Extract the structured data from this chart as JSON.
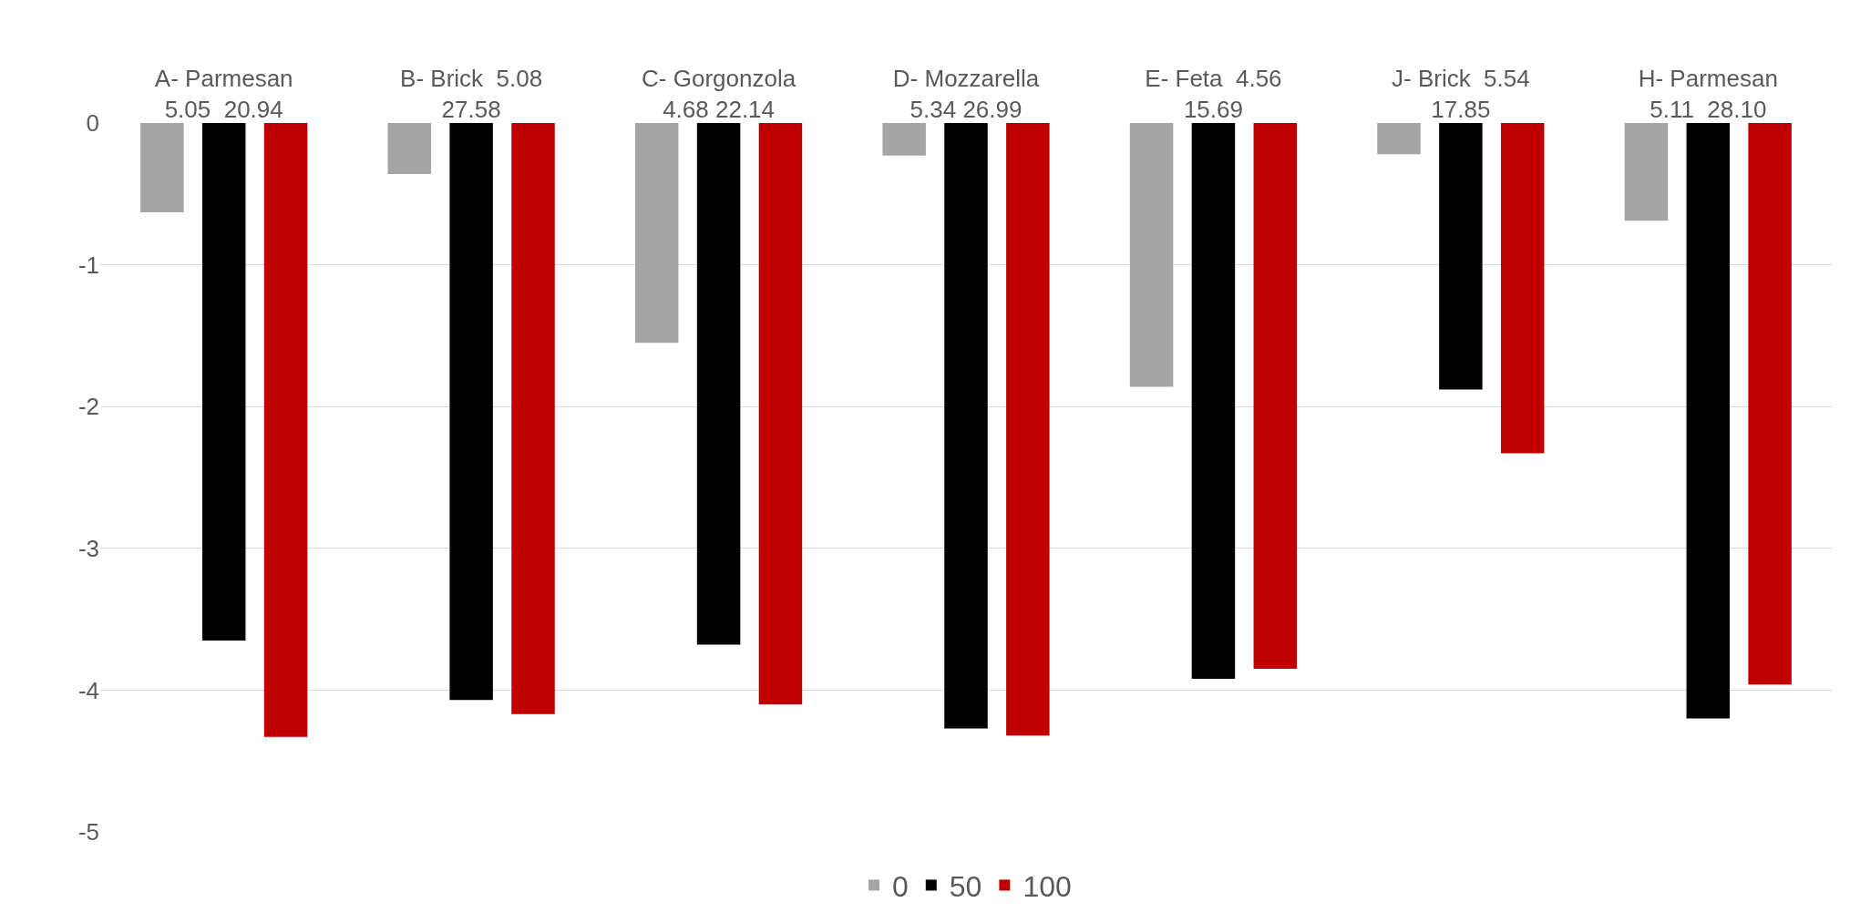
{
  "chart_data": {
    "type": "bar",
    "categories": [
      "A- Parmesan\n5.05  20.94",
      "B- Brick  5.08\n27.58",
      "C- Gorgonzola\n4.68 22.14",
      "D- Mozzarella\n5.34 26.99",
      "E- Feta  4.56\n15.69",
      "J- Brick  5.54\n17.85",
      "H- Parmesan\n5.11  28.10"
    ],
    "series": [
      {
        "name": "0",
        "color": "#a5a5a5",
        "values": [
          -0.63,
          -0.36,
          -1.55,
          -0.23,
          -1.86,
          -0.22,
          -0.69
        ]
      },
      {
        "name": "50",
        "color": "#000000",
        "values": [
          -3.65,
          -4.07,
          -3.68,
          -4.27,
          -3.92,
          -1.88,
          -4.2
        ]
      },
      {
        "name": "100",
        "color": "#c00000",
        "values": [
          -4.33,
          -4.17,
          -4.1,
          -4.32,
          -3.85,
          -2.33,
          -3.96
        ]
      }
    ],
    "ylim": [
      -5,
      0
    ],
    "yticks": [
      0,
      -1,
      -2,
      -3,
      -4,
      -5
    ],
    "grid": "y",
    "legend": "bottom"
  }
}
